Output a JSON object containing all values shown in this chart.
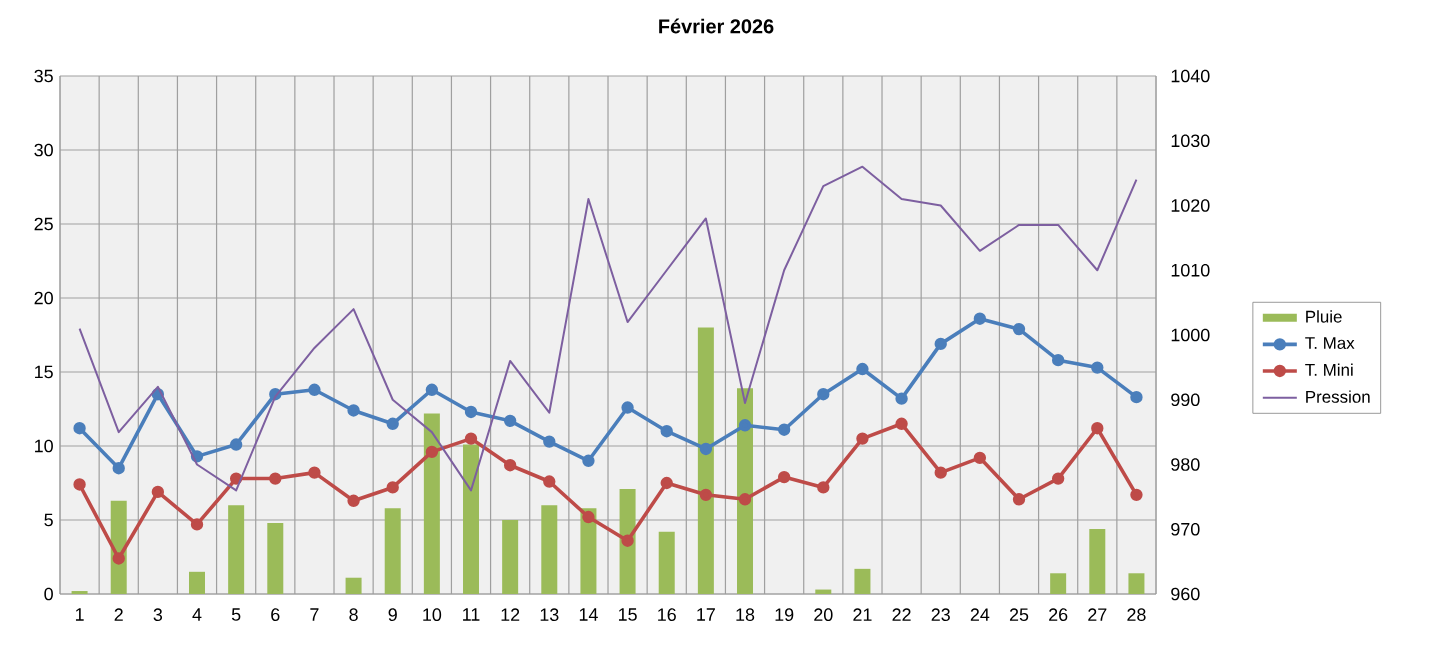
{
  "chart_data": {
    "type": "bar",
    "title": "Février 2026",
    "categories": [
      "1",
      "2",
      "3",
      "4",
      "5",
      "6",
      "7",
      "8",
      "9",
      "10",
      "11",
      "12",
      "13",
      "14",
      "15",
      "16",
      "17",
      "18",
      "19",
      "20",
      "21",
      "22",
      "23",
      "24",
      "25",
      "26",
      "27",
      "28"
    ],
    "series": [
      {
        "name": "Pluie",
        "color": "#9bbb59",
        "values": [
          0.2,
          6.3,
          0,
          1.5,
          6.0,
          4.8,
          0,
          1.1,
          5.8,
          12.2,
          10.1,
          5.0,
          6.0,
          5.8,
          7.1,
          4.2,
          18.0,
          13.9,
          0,
          0.3,
          1.7,
          0,
          0,
          0,
          0,
          1.4,
          4.4,
          1.4
        ]
      },
      {
        "name": "T. Max",
        "type": "line",
        "marker": "circle",
        "color": "#4a7ebb",
        "values": [
          11.2,
          8.5,
          13.5,
          9.3,
          10.1,
          13.5,
          13.8,
          12.4,
          11.5,
          13.8,
          12.3,
          11.7,
          10.3,
          9.0,
          12.6,
          11.0,
          9.8,
          11.4,
          11.1,
          13.5,
          15.2,
          13.2,
          16.9,
          18.6,
          17.9,
          15.8,
          15.3,
          13.3
        ]
      },
      {
        "name": "T. Mini",
        "type": "line",
        "marker": "circle",
        "color": "#be4b48",
        "values": [
          7.4,
          2.4,
          6.9,
          4.7,
          7.8,
          7.8,
          8.2,
          6.3,
          7.2,
          9.6,
          10.5,
          8.7,
          7.6,
          5.2,
          3.6,
          7.5,
          6.7,
          6.4,
          7.9,
          7.2,
          10.5,
          11.5,
          8.2,
          9.2,
          6.4,
          7.8,
          11.2,
          6.7
        ]
      },
      {
        "name": "Pression",
        "type": "line",
        "axis": "y2",
        "color": "#7d5fa0",
        "values": [
          1001,
          985,
          992,
          980,
          976,
          990.5,
          998,
          1004,
          990,
          985,
          976,
          996,
          988,
          1021,
          1002,
          1010,
          1018,
          989.5,
          1010,
          1023,
          1026,
          1021,
          1020,
          1013,
          1017,
          1017,
          1010,
          1024
        ]
      }
    ],
    "ylim": [
      0,
      35
    ],
    "yticks": [
      0,
      5,
      10,
      15,
      20,
      25,
      30,
      35
    ],
    "y2lim": [
      960,
      1040
    ],
    "y2ticks": [
      960,
      970,
      980,
      990,
      1000,
      1010,
      1020,
      1030,
      1040
    ],
    "grid": true,
    "legend": "right"
  }
}
